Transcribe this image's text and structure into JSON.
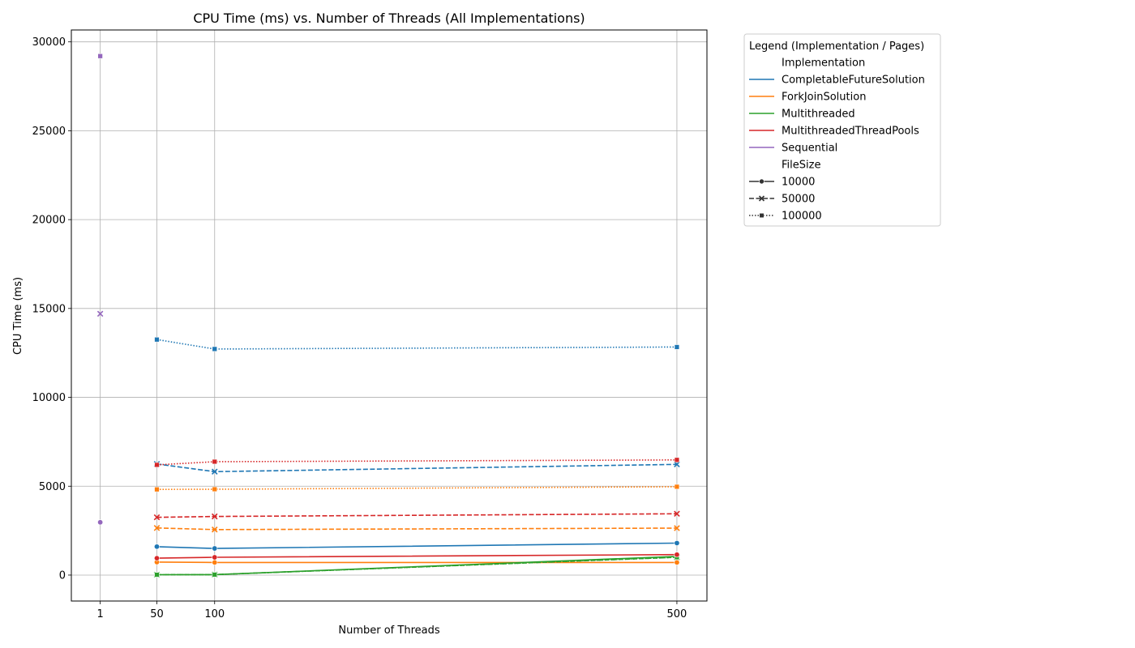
{
  "chart_data": {
    "type": "line",
    "title": "CPU Time (ms) vs. Number of Threads (All Implementations)",
    "xlabel": "Number of Threads",
    "ylabel": "CPU Time (ms)",
    "x_ticks": [
      1,
      50,
      100,
      500
    ],
    "y_ticks": [
      0,
      5000,
      10000,
      15000,
      20000,
      25000,
      30000
    ],
    "xlim": [
      -24,
      526
    ],
    "ylim": [
      -1460,
      30670
    ],
    "grid": true,
    "legend": {
      "title": "Legend (Implementation / Pages)",
      "placement": "outside-right",
      "implementation_header": "Implementation",
      "filesize_header": "FileSize",
      "implementations": [
        {
          "name": "CompletableFutureSolution",
          "color": "#1f77b4"
        },
        {
          "name": "ForkJoinSolution",
          "color": "#ff7f0e"
        },
        {
          "name": "Multithreaded",
          "color": "#2ca02c"
        },
        {
          "name": "MultithreadedThreadPools",
          "color": "#d62728"
        },
        {
          "name": "Sequential",
          "color": "#9467bd"
        }
      ],
      "filesizes": [
        {
          "name": "10000",
          "marker": "circle",
          "dash": "solid"
        },
        {
          "name": "50000",
          "marker": "x",
          "dash": "dashed"
        },
        {
          "name": "100000",
          "marker": "square",
          "dash": "dotted"
        }
      ]
    },
    "series": [
      {
        "implementation": "CompletableFutureSolution",
        "filesize": "10000",
        "x": [
          50,
          100,
          500
        ],
        "y": [
          1600,
          1500,
          1800
        ]
      },
      {
        "implementation": "CompletableFutureSolution",
        "filesize": "50000",
        "x": [
          50,
          100,
          500
        ],
        "y": [
          6250,
          5820,
          6230
        ]
      },
      {
        "implementation": "CompletableFutureSolution",
        "filesize": "100000",
        "x": [
          50,
          100,
          500
        ],
        "y": [
          13250,
          12720,
          12830
        ]
      },
      {
        "implementation": "ForkJoinSolution",
        "filesize": "10000",
        "x": [
          50,
          100,
          500
        ],
        "y": [
          730,
          710,
          710
        ]
      },
      {
        "implementation": "ForkJoinSolution",
        "filesize": "50000",
        "x": [
          50,
          100,
          500
        ],
        "y": [
          2650,
          2560,
          2640
        ]
      },
      {
        "implementation": "ForkJoinSolution",
        "filesize": "100000",
        "x": [
          50,
          100,
          500
        ],
        "y": [
          4820,
          4830,
          4970
        ]
      },
      {
        "implementation": "Multithreaded",
        "filesize": "10000",
        "x": [
          50,
          100,
          500
        ],
        "y": [
          20,
          25,
          1050
        ]
      },
      {
        "implementation": "Multithreaded",
        "filesize": "50000",
        "x": [
          50,
          100,
          500
        ],
        "y": [
          20,
          25,
          1000
        ]
      },
      {
        "implementation": "Multithreaded",
        "filesize": "100000",
        "x": [
          50,
          100,
          500
        ],
        "y": [
          20,
          25,
          1000
        ]
      },
      {
        "implementation": "MultithreadedThreadPools",
        "filesize": "10000",
        "x": [
          50,
          100,
          500
        ],
        "y": [
          950,
          1000,
          1150
        ]
      },
      {
        "implementation": "MultithreadedThreadPools",
        "filesize": "50000",
        "x": [
          50,
          100,
          500
        ],
        "y": [
          3250,
          3300,
          3450
        ]
      },
      {
        "implementation": "MultithreadedThreadPools",
        "filesize": "100000",
        "x": [
          50,
          100,
          500
        ],
        "y": [
          6200,
          6380,
          6480
        ]
      },
      {
        "implementation": "Sequential",
        "filesize": "10000",
        "x": [
          1
        ],
        "y": [
          2970
        ]
      },
      {
        "implementation": "Sequential",
        "filesize": "50000",
        "x": [
          1
        ],
        "y": [
          14700
        ]
      },
      {
        "implementation": "Sequential",
        "filesize": "100000",
        "x": [
          1
        ],
        "y": [
          29200
        ]
      }
    ]
  }
}
